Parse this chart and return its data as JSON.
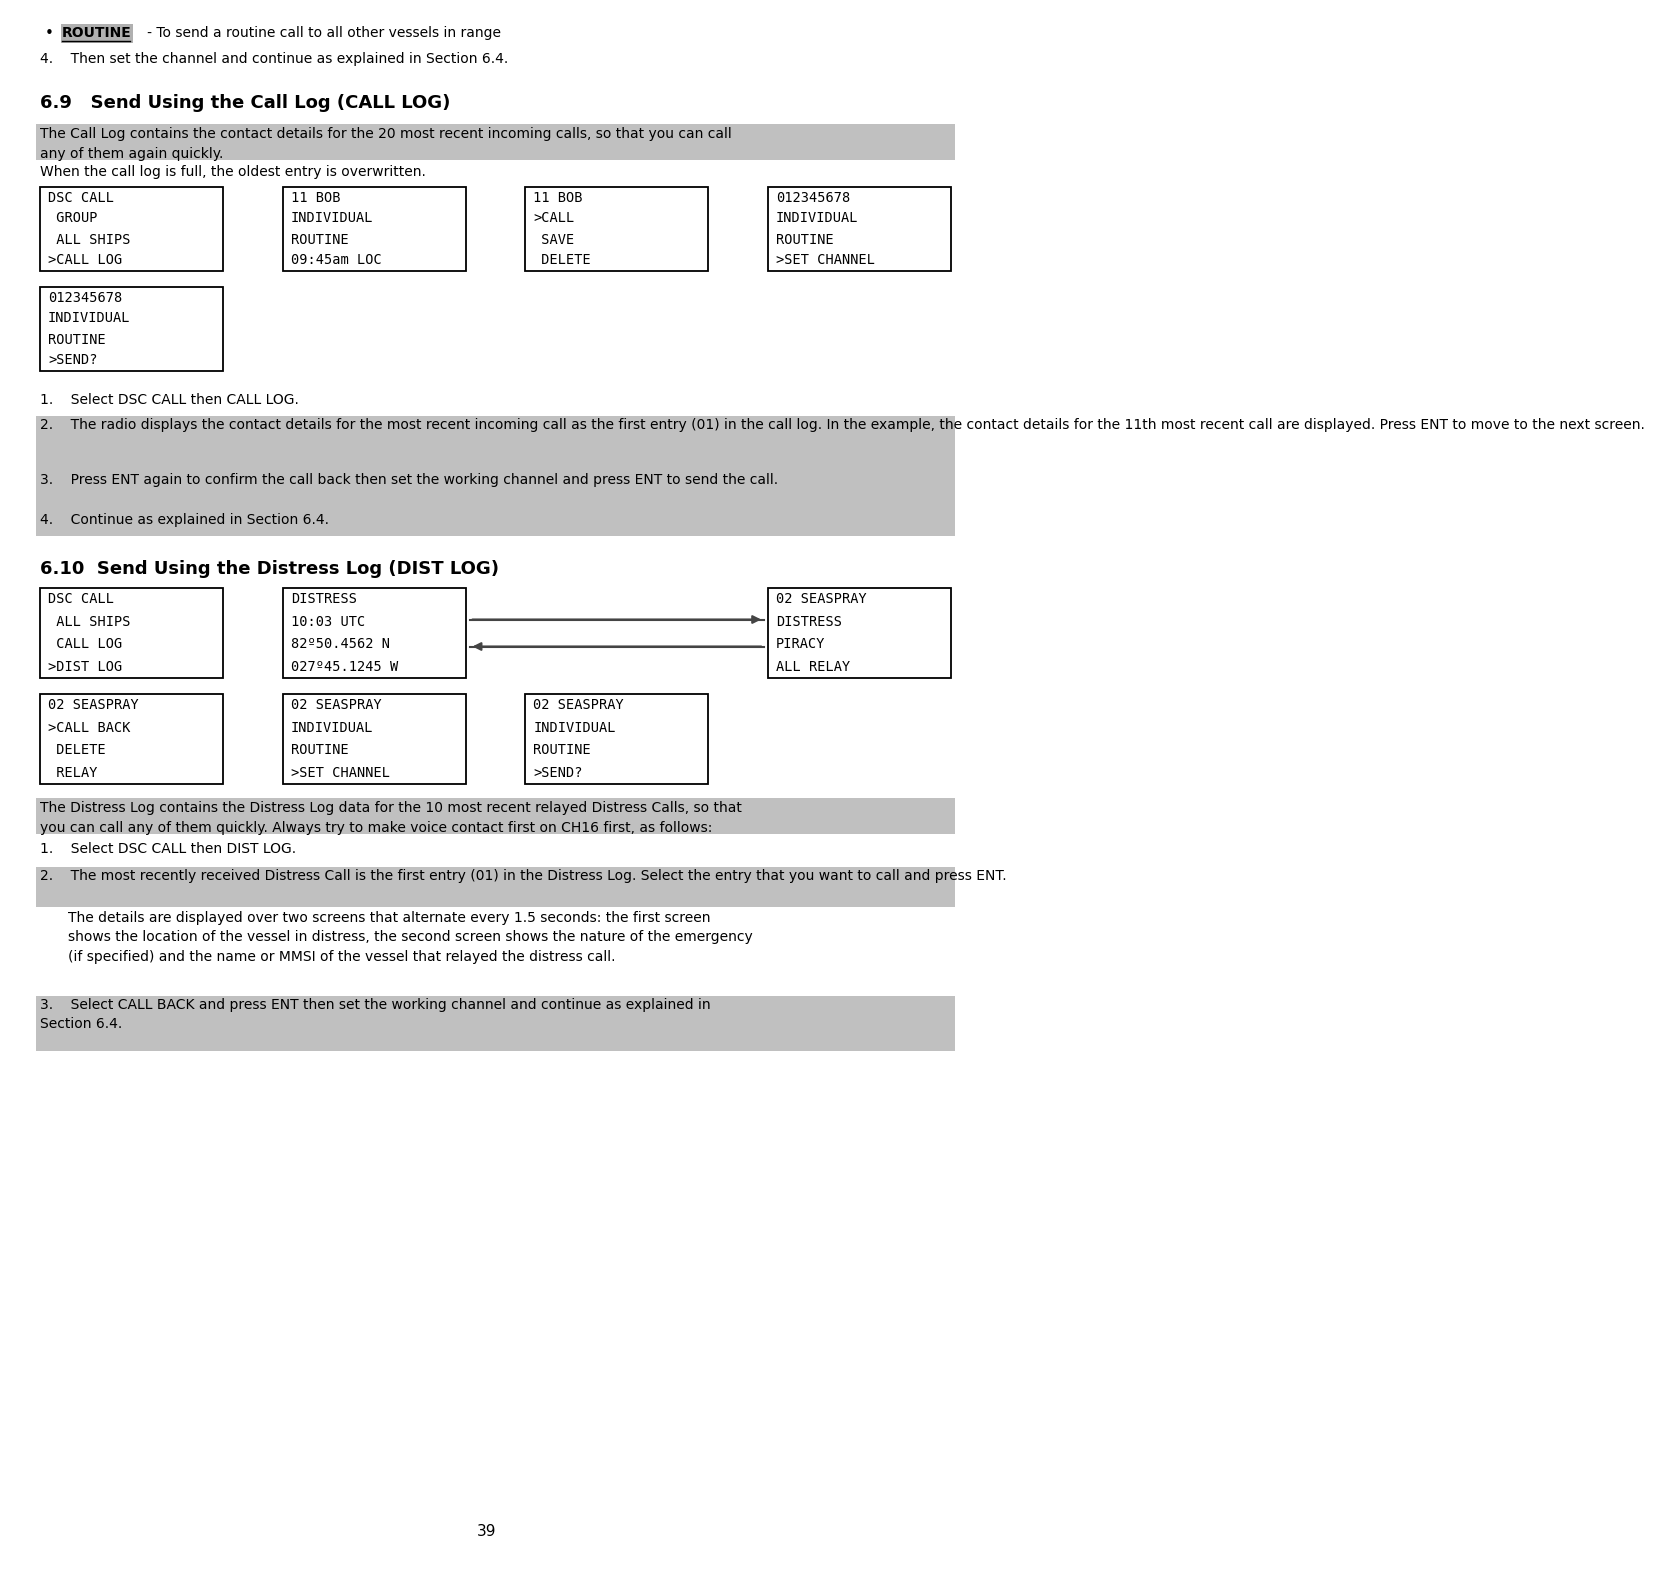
{
  "bg_color": "#ffffff",
  "highlight_color": "#c0c0c0",
  "box_border_color": "#000000",
  "text_color": "#000000",
  "bullet_text": "ROUTINE",
  "bullet_suffix": "   - To send a routine call to all other vessels in range",
  "item4_text": "4.    Then set the channel and continue as explained in Section 6.4.",
  "section69_title": "6.9   Send Using the Call Log (CALL LOG)",
  "section69_highlight1": "The Call Log contains the contact details for the 20 most recent incoming calls, so that you can call\nany of them again quickly.",
  "section69_plain1": "When the call log is full, the oldest entry is overwritten.",
  "boxes_69": [
    [
      "DSC CALL",
      " GROUP",
      " ALL SHIPS",
      ">CALL LOG"
    ],
    [
      "11 BOB",
      "INDIVIDUAL",
      "ROUTINE",
      "09:45am LOC"
    ],
    [
      "11 BOB",
      ">CALL",
      " SAVE",
      " DELETE"
    ],
    [
      "012345678",
      "INDIVIDUAL",
      "ROUTINE",
      ">SET CHANNEL"
    ]
  ],
  "box5_69": [
    "012345678",
    "INDIVIDUAL",
    "ROUTINE",
    ">SEND?"
  ],
  "steps_69": [
    {
      "num": "1.",
      "text": "Select DSC CALL then CALL LOG.",
      "highlight": false
    },
    {
      "num": "2.",
      "text": "The radio displays the contact details for the most recent incoming call as the first entry (01) in the call log. In the example, the contact details for the 11th most recent call are displayed. Press ENT to move to the next screen.",
      "highlight": true
    },
    {
      "num": "3.",
      "text": "Press ENT again to confirm the call back then set the working channel and press ENT to send the call.",
      "highlight": true
    },
    {
      "num": "4.",
      "text": "Continue as explained in Section 6.4.",
      "highlight": true
    }
  ],
  "section610_title": "6.10  Send Using the Distress Log (DIST LOG)",
  "boxes_610_row1_left": [
    "DSC CALL",
    " ALL SHIPS",
    " CALL LOG",
    ">DIST LOG"
  ],
  "boxes_610_row1_mid": [
    "DISTRESS",
    "10:03 UTC",
    "82º50.4562 N",
    "027º45.1245 W"
  ],
  "boxes_610_row1_right": [
    "02 SEASPRAY",
    "DISTRESS",
    "PIRACY",
    "ALL RELAY"
  ],
  "boxes_610_row2": [
    [
      "02 SEASPRAY",
      ">CALL BACK",
      " DELETE",
      " RELAY"
    ],
    [
      "02 SEASPRAY",
      "INDIVIDUAL",
      "ROUTINE",
      ">SET CHANNEL"
    ],
    [
      "02 SEASPRAY",
      "INDIVIDUAL",
      "ROUTINE",
      ">SEND?"
    ]
  ],
  "section610_highlight1": "The Distress Log contains the Distress Log data for the 10 most recent relayed Distress Calls, so that\nyou can call any of them quickly. Always try to make voice contact first on CH16 first, as follows:",
  "steps_610": [
    {
      "num": "1.",
      "text": "Select DSC CALL then DIST LOG.",
      "highlight": false,
      "indent_only": false
    },
    {
      "num": "2.",
      "text": "The most recently received Distress Call is the first entry (01) in the Distress Log. Select the entry that you want to call and press ENT.",
      "highlight": true,
      "indent_only": false
    },
    {
      "num": "",
      "text": "The details are displayed over two screens that alternate every 1.5 seconds: the first screen\nshows the location of the vessel in distress, the second screen shows the nature of the emergency\n(if specified) and the name or MMSI of the vessel that relayed the distress call.",
      "highlight": false,
      "indent_only": true
    },
    {
      "num": "3.",
      "text": "Select CALL BACK and press ENT then set the working channel and continue as explained in\nSection 6.4.",
      "highlight": true,
      "indent_only": false
    }
  ],
  "page_number": "39"
}
